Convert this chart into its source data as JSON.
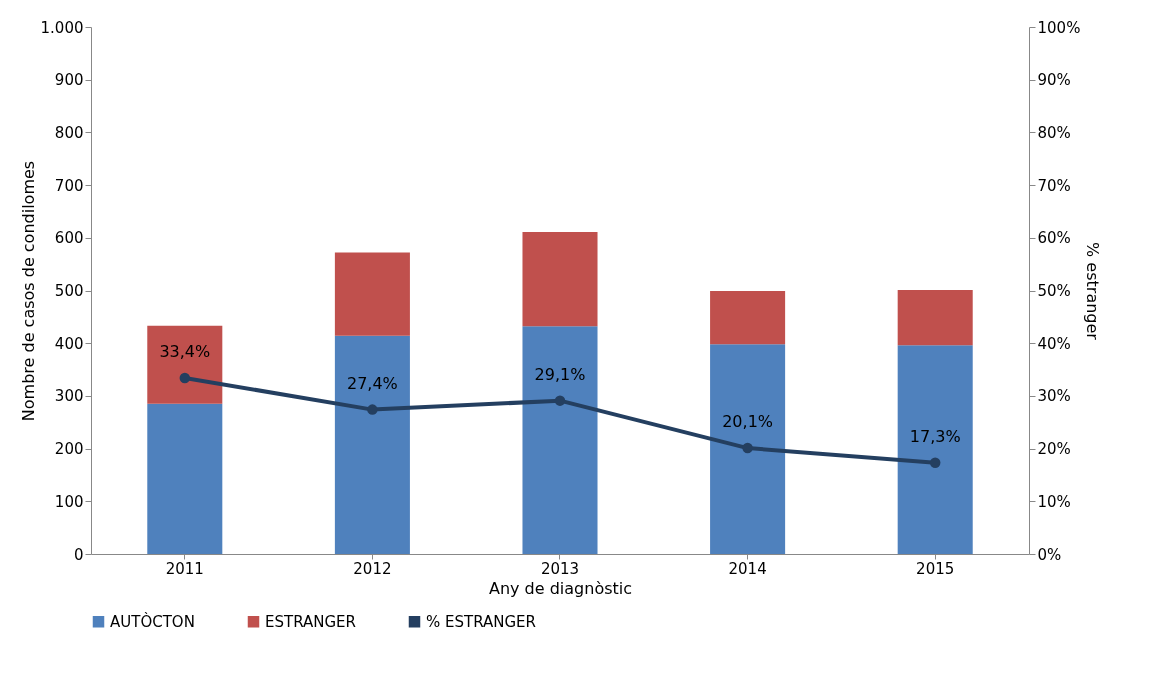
{
  "chart_data": {
    "type": "bar",
    "stacked": true,
    "xlabel": "Any de diagnòstic",
    "ylabel": "Nombre de casos de condilomes",
    "y2label": "% estranger",
    "categories": [
      "2011",
      "2012",
      "2013",
      "2014",
      "2015"
    ],
    "series": [
      {
        "name": "AUTÒCTON",
        "color": "#4f81bd",
        "values": [
          285,
          414,
          432,
          398,
          396
        ]
      },
      {
        "name": "ESTRANGER",
        "color": "#c0504d",
        "values": [
          148,
          158,
          179,
          101,
          105
        ]
      },
      {
        "name": "% ESTRANGER",
        "type": "line",
        "axis": "y2",
        "color": "#243f60",
        "values": [
          33.4,
          27.4,
          29.1,
          20.1,
          17.3
        ],
        "value_labels": [
          "33,4%",
          "27,4%",
          "29,1%",
          "20,1%",
          "17,3%"
        ]
      }
    ],
    "ylim": [
      0,
      1000
    ],
    "yticks": [
      0,
      100,
      200,
      300,
      400,
      500,
      600,
      700,
      800,
      900,
      {
        "value": 1000,
        "label": "1.000"
      }
    ],
    "y2lim": [
      0,
      100
    ],
    "y2ticks": [
      {
        "value": 0,
        "label": "0%"
      },
      {
        "value": 10,
        "label": "10%"
      },
      {
        "value": 20,
        "label": "20%"
      },
      {
        "value": 30,
        "label": "30%"
      },
      {
        "value": 40,
        "label": "40%"
      },
      {
        "value": 50,
        "label": "50%"
      },
      {
        "value": 60,
        "label": "60%"
      },
      {
        "value": 70,
        "label": "70%"
      },
      {
        "value": 80,
        "label": "80%"
      },
      {
        "value": 90,
        "label": "90%"
      },
      {
        "value": 100,
        "label": "100%"
      }
    ],
    "marker": "circle",
    "line_style": "solid",
    "grid": false,
    "legend": "bottom"
  }
}
